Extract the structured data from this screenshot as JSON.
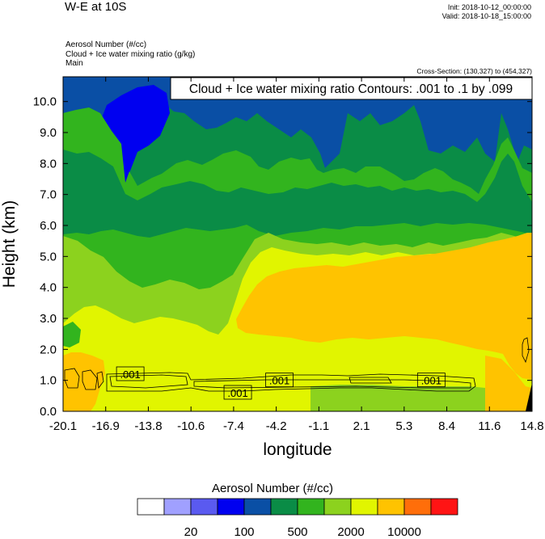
{
  "header": {
    "title": "W-E at 10S",
    "init": "Init: 2018-10-12_00:00:00",
    "valid": "Valid: 2018-10-18_15:00:00",
    "field1": "Aerosol Number   (#/cc)",
    "field2": "Cloud + Ice water mixing ratio   (g/kg)",
    "field3": "Main",
    "cross_section": "Cross-Section: (130,327) to (454,327)"
  },
  "chart_data": {
    "type": "heatmap",
    "title": "Cloud + Ice water mixing ratio Contours: .001 to .1 by .099",
    "xlabel": "longitude",
    "ylabel": "Height (km)",
    "xlim": [
      -20.1,
      14.8
    ],
    "ylim": [
      0.0,
      10.8
    ],
    "x_ticks": [
      "-20.1",
      "-16.9",
      "-13.8",
      "-10.6",
      "-7.4",
      "-4.2",
      "-1.1",
      "2.1",
      "5.3",
      "8.4",
      "11.6",
      "14.8"
    ],
    "y_ticks": [
      "0.0",
      "1.0",
      "2.0",
      "3.0",
      "4.0",
      "5.0",
      "6.0",
      "7.0",
      "8.0",
      "9.0",
      "10.0"
    ],
    "contour_labels": [
      {
        "text": ".001",
        "x": -15.1,
        "y": 1.2
      },
      {
        "text": ".001",
        "x": -7.1,
        "y": 0.6
      },
      {
        "text": ".001",
        "x": -4.0,
        "y": 1.0
      },
      {
        "text": ".001",
        "x": 7.3,
        "y": 1.0
      }
    ],
    "colorbar": {
      "title": "Aerosol Number  (#/cc)",
      "colors": [
        "#ffffff",
        "#a0a0ff",
        "#5a5af0",
        "#0000f0",
        "#0a4fa5",
        "#0a8c46",
        "#32b41e",
        "#8cd21e",
        "#e1f500",
        "#ffc300",
        "#ff6e0a",
        "#ff1414"
      ],
      "labels": [
        "20",
        "100",
        "500",
        "2000",
        "10000"
      ]
    }
  }
}
